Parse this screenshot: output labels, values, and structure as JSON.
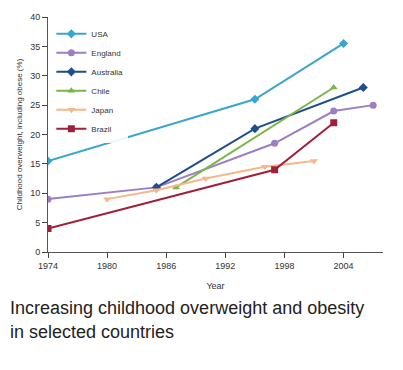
{
  "chart_data": {
    "type": "line",
    "title": "Increasing childhood overweight and obesity in selected countries",
    "x_label": "Year",
    "y_label": "Childhood overweight, including obese (%)",
    "xlim": [
      1974,
      2008
    ],
    "xticks": [
      1974,
      1980,
      1986,
      1992,
      1998,
      2004
    ],
    "ylim": [
      0,
      40
    ],
    "yticks": [
      0,
      5,
      10,
      15,
      20,
      25,
      30,
      35,
      40
    ],
    "grid": false,
    "legend": "upper left",
    "series": [
      {
        "name": "USA",
        "color": "#3aa6cc",
        "marker": "diamond",
        "x": [
          1974,
          1995,
          2004
        ],
        "values": [
          15.5,
          26,
          35.5
        ]
      },
      {
        "name": "England",
        "color": "#9b7fc2",
        "marker": "circle",
        "x": [
          1974,
          1985,
          1997,
          2003,
          2007
        ],
        "values": [
          9,
          11,
          18.5,
          24,
          25
        ]
      },
      {
        "name": "Australia",
        "color": "#1f4e8c",
        "marker": "diamond",
        "x": [
          1985,
          1995,
          2006
        ],
        "values": [
          11,
          21,
          28
        ]
      },
      {
        "name": "Chile",
        "color": "#7ab648",
        "marker": "triangle-up",
        "x": [
          1987,
          2003
        ],
        "values": [
          11,
          28
        ]
      },
      {
        "name": "Japan",
        "color": "#f5b88a",
        "marker": "triangle-down",
        "x": [
          1980,
          1985,
          1990,
          1996,
          2001
        ],
        "values": [
          9,
          10.5,
          12.5,
          14.5,
          15.5
        ]
      },
      {
        "name": "Brazil",
        "color": "#a0203a",
        "marker": "square",
        "x": [
          1974,
          1997,
          2003
        ],
        "values": [
          4,
          14,
          22
        ]
      }
    ]
  }
}
